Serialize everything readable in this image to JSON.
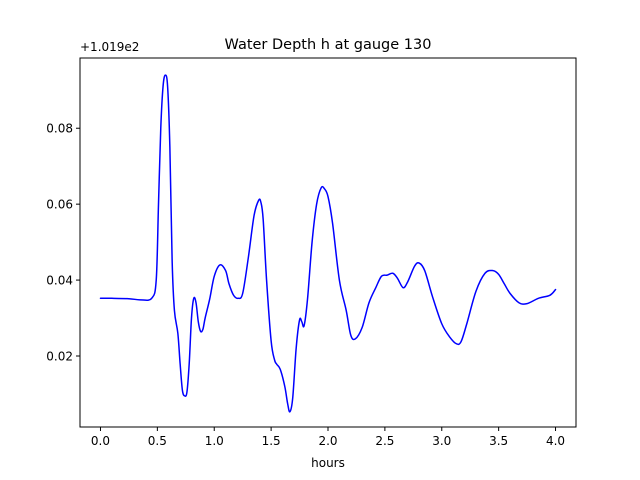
{
  "chart_data": {
    "type": "line",
    "title": "Water Depth h at gauge 130",
    "xlabel": "hours",
    "ylabel": "",
    "offset_label": "+1.019e2",
    "xlim": [
      -0.18,
      4.18
    ],
    "ylim": [
      0.0013,
      0.0985
    ],
    "xticks": [
      0.0,
      0.5,
      1.0,
      1.5,
      2.0,
      2.5,
      3.0,
      3.5,
      4.0
    ],
    "xtick_labels": [
      "0.0",
      "0.5",
      "1.0",
      "1.5",
      "2.0",
      "2.5",
      "3.0",
      "3.5",
      "4.0"
    ],
    "yticks": [
      0.02,
      0.04,
      0.06,
      0.08
    ],
    "ytick_labels": [
      "0.02",
      "0.04",
      "0.06",
      "0.08"
    ],
    "grid": false,
    "line_color": "#0000ff",
    "series": [
      {
        "name": "",
        "x": [
          0.0,
          0.1,
          0.25,
          0.35,
          0.45,
          0.49,
          0.51,
          0.53,
          0.55,
          0.57,
          0.59,
          0.61,
          0.63,
          0.65,
          0.68,
          0.7,
          0.72,
          0.74,
          0.76,
          0.78,
          0.8,
          0.82,
          0.84,
          0.86,
          0.88,
          0.9,
          0.92,
          0.96,
          1.0,
          1.05,
          1.1,
          1.13,
          1.17,
          1.21,
          1.25,
          1.3,
          1.35,
          1.39,
          1.41,
          1.43,
          1.46,
          1.5,
          1.53,
          1.55,
          1.58,
          1.62,
          1.645,
          1.665,
          1.69,
          1.72,
          1.75,
          1.77,
          1.79,
          1.82,
          1.86,
          1.9,
          1.94,
          1.97,
          2.0,
          2.04,
          2.1,
          2.16,
          2.2,
          2.24,
          2.3,
          2.36,
          2.42,
          2.47,
          2.52,
          2.57,
          2.61,
          2.66,
          2.7,
          2.76,
          2.8,
          2.85,
          2.92,
          3.0,
          3.07,
          3.13,
          3.17,
          3.22,
          3.3,
          3.38,
          3.45,
          3.5,
          3.55,
          3.6,
          3.68,
          3.75,
          3.85,
          3.95,
          4.0
        ],
        "y": [
          0.0352,
          0.0352,
          0.0351,
          0.0348,
          0.0352,
          0.04,
          0.06,
          0.08,
          0.091,
          0.094,
          0.091,
          0.075,
          0.045,
          0.032,
          0.026,
          0.018,
          0.011,
          0.0095,
          0.0105,
          0.018,
          0.03,
          0.0352,
          0.034,
          0.029,
          0.0265,
          0.027,
          0.03,
          0.035,
          0.041,
          0.044,
          0.0425,
          0.039,
          0.036,
          0.0352,
          0.0365,
          0.046,
          0.057,
          0.061,
          0.0605,
          0.056,
          0.04,
          0.024,
          0.019,
          0.0178,
          0.0165,
          0.012,
          0.0075,
          0.0053,
          0.009,
          0.022,
          0.0295,
          0.029,
          0.028,
          0.035,
          0.05,
          0.06,
          0.0643,
          0.064,
          0.062,
          0.055,
          0.04,
          0.032,
          0.0255,
          0.0245,
          0.0275,
          0.034,
          0.038,
          0.041,
          0.0413,
          0.0418,
          0.0405,
          0.038,
          0.0395,
          0.0436,
          0.0445,
          0.0425,
          0.0355,
          0.0285,
          0.025,
          0.0232,
          0.0238,
          0.0285,
          0.037,
          0.0418,
          0.0425,
          0.0415,
          0.039,
          0.0365,
          0.034,
          0.0338,
          0.0352,
          0.036,
          0.0375
        ]
      }
    ]
  }
}
